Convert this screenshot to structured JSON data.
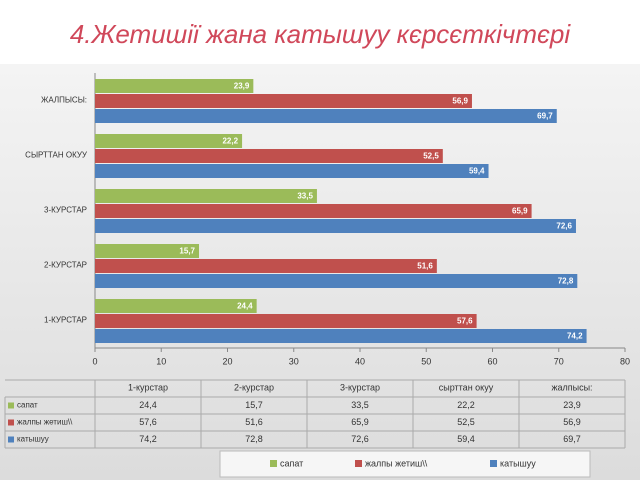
{
  "chart_data": {
    "type": "bar",
    "orientation": "horizontal",
    "title": "4.Жетишії жана катышуу кєрсєткічтєрі",
    "categories": [
      "1-КУРСТАР",
      "2-КУРСТАР",
      "3-КУРСТАР",
      "СЫРТТАН ОКУУ",
      "ЖАЛПЫСЫ:"
    ],
    "table_headers": [
      "1-курстар",
      "2-курстар",
      "3-курстар",
      "сырттан окуу",
      "жалпысы:"
    ],
    "series": [
      {
        "name": "сапат",
        "color": "#9bbb59",
        "values": [
          24.4,
          15.7,
          33.5,
          22.2,
          23.9
        ],
        "value_labels": [
          "24,4",
          "15,7",
          "33,5",
          "22,2",
          "23,9"
        ]
      },
      {
        "name": "жалпы жетиш\\\\",
        "color": "#c0504d",
        "values": [
          57.6,
          51.6,
          65.9,
          52.5,
          56.9
        ],
        "value_labels": [
          "57,6",
          "51,6",
          "65,9",
          "52,5",
          "56,9"
        ]
      },
      {
        "name": "катышуу",
        "color": "#4f81bd",
        "values": [
          74.2,
          72.8,
          72.6,
          59.4,
          69.7
        ],
        "value_labels": [
          "74,2",
          "72,8",
          "72,6",
          "59,4",
          "69,7"
        ]
      }
    ],
    "xlim": [
      0,
      80
    ],
    "xticks": [
      0,
      10,
      20,
      30,
      40,
      50,
      60,
      70,
      80
    ],
    "grid": false
  }
}
